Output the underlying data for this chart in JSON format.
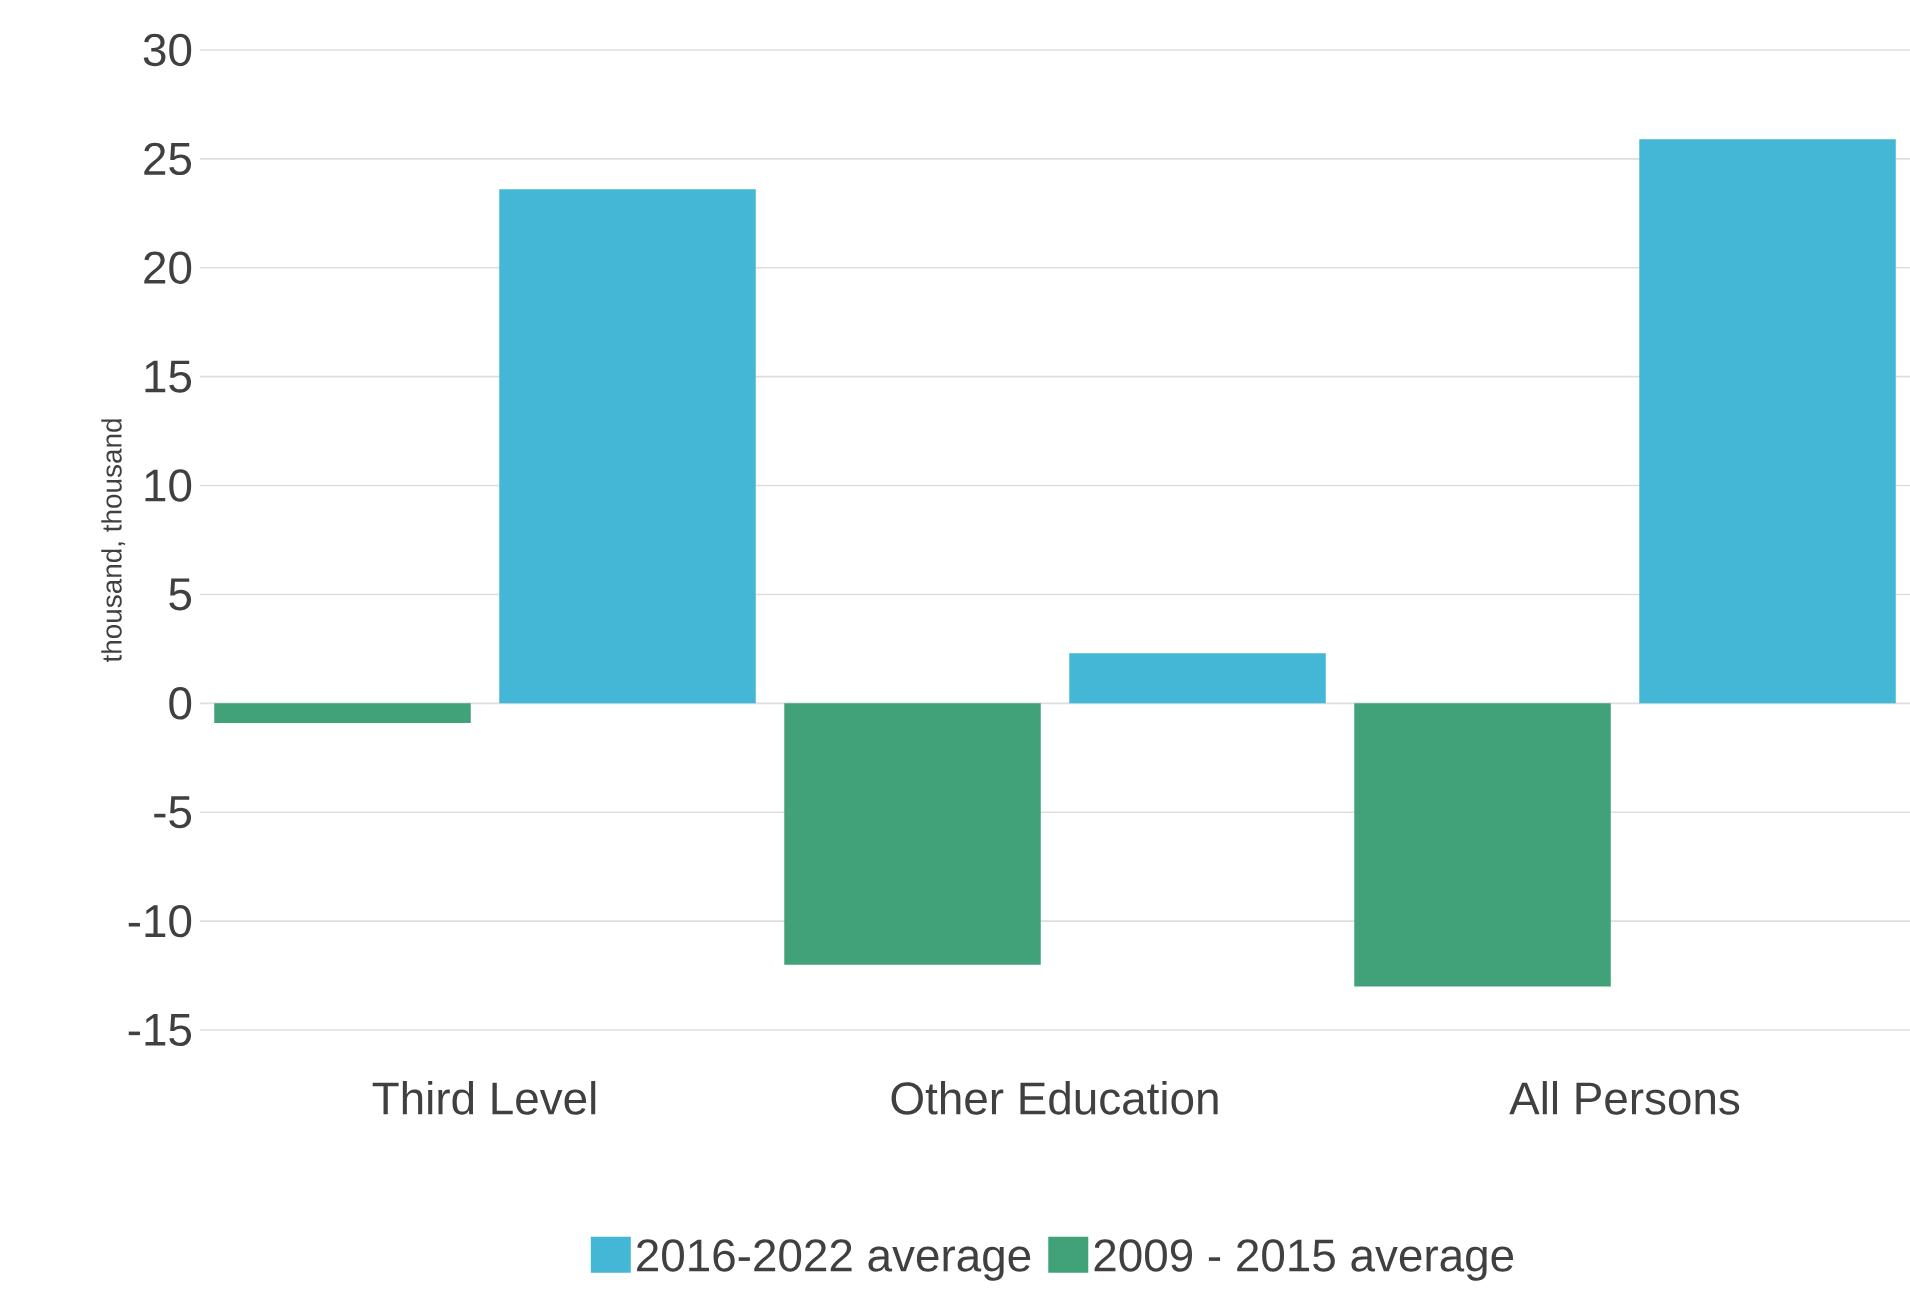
{
  "chart_data": {
    "type": "bar",
    "ylabel": "thousand, thousand",
    "categories": [
      "Third Level",
      "Other Education",
      "All Persons"
    ],
    "series": [
      {
        "name": "2009 - 2015 average",
        "color": "#41a27a",
        "values": [
          -0.9,
          -12.0,
          -13.0
        ]
      },
      {
        "name": "2016-2022 average",
        "color": "#44b6d6",
        "values": [
          23.6,
          2.3,
          25.9
        ]
      }
    ],
    "ylim": [
      -15,
      30
    ],
    "yticks": [
      -15,
      -10,
      -5,
      0,
      5,
      10,
      15,
      20,
      25,
      30
    ],
    "grid": "y",
    "legend": "bottom"
  }
}
